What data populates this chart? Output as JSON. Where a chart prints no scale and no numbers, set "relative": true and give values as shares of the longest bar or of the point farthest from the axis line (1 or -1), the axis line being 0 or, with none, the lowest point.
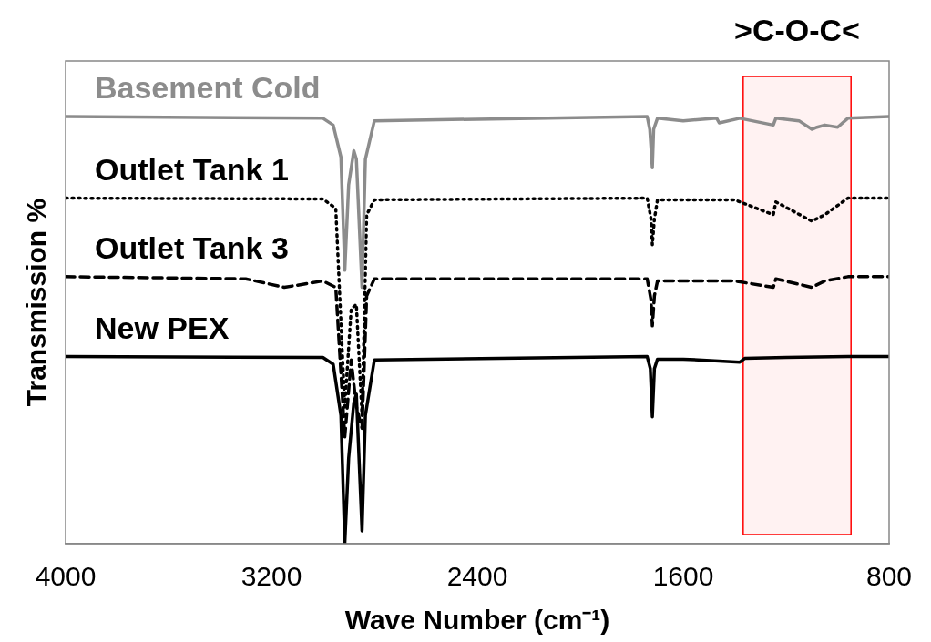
{
  "chart_data": {
    "type": "line",
    "relative": true,
    "xlabel": "Wave Number (cm⁻¹)",
    "ylabel": "Transmission %",
    "xlim": [
      4000,
      800
    ],
    "xticks": [
      4000,
      3200,
      2400,
      1600,
      800
    ],
    "grid": false,
    "legend": false,
    "marker": "none",
    "bands": [
      {
        "axis": "x",
        "from": 1367,
        "to": 948,
        "label": ">C-O-C<",
        "color": "#ff0000"
      }
    ],
    "series": [
      {
        "name": "Basement Cold",
        "color": "#8c8c8c",
        "line_style": "solid",
        "x": [
          4000,
          3000,
          2960,
          2930,
          2915,
          2900,
          2880,
          2870,
          2848,
          2835,
          2800,
          1740,
          1730,
          1720,
          1715,
          1700,
          1600,
          1470,
          1460,
          1380,
          1250,
          1240,
          1150,
          1100,
          1080,
          1050,
          1000,
          960,
          800
        ],
        "values": [
          1.0,
          0.996,
          0.98,
          0.905,
          0.64,
          0.84,
          0.92,
          0.9,
          0.6,
          0.9,
          0.99,
          1.0,
          0.97,
          0.88,
          0.97,
          0.996,
          0.99,
          0.996,
          0.985,
          0.996,
          0.98,
          0.996,
          0.99,
          0.97,
          0.975,
          0.98,
          0.975,
          0.996,
          1.0
        ]
      },
      {
        "name": "Outlet Tank 1",
        "color": "#000000",
        "line_style": "dotted",
        "x": [
          4000,
          3000,
          2950,
          2915,
          2890,
          2870,
          2848,
          2830,
          2800,
          1740,
          1725,
          1720,
          1712,
          1700,
          1400,
          1250,
          1240,
          1100,
          1050,
          960,
          800
        ],
        "values": [
          0.809,
          0.807,
          0.785,
          0.32,
          0.55,
          0.56,
          0.3,
          0.77,
          0.805,
          0.809,
          0.76,
          0.7,
          0.76,
          0.805,
          0.805,
          0.77,
          0.8,
          0.755,
          0.77,
          0.809,
          0.809
        ]
      },
      {
        "name": "Outlet Tank 3",
        "color": "#000000",
        "line_style": "dashed",
        "x": [
          4000,
          3300,
          3150,
          3000,
          2950,
          2915,
          2890,
          2870,
          2848,
          2830,
          2800,
          1740,
          1725,
          1720,
          1712,
          1700,
          1400,
          1250,
          1240,
          1100,
          1050,
          960,
          800
        ],
        "values": [
          0.625,
          0.62,
          0.6,
          0.615,
          0.6,
          0.25,
          0.43,
          0.32,
          0.27,
          0.58,
          0.62,
          0.62,
          0.57,
          0.51,
          0.58,
          0.615,
          0.615,
          0.6,
          0.62,
          0.6,
          0.615,
          0.625,
          0.625
        ]
      },
      {
        "name": "New PEX",
        "color": "#000000",
        "line_style": "solid",
        "x": [
          4000,
          3000,
          2960,
          2930,
          2915,
          2900,
          2880,
          2870,
          2848,
          2835,
          2800,
          1740,
          1728,
          1720,
          1712,
          1700,
          1600,
          1380,
          1360,
          1200,
          960,
          800
        ],
        "values": [
          0.438,
          0.436,
          0.42,
          0.3,
          0.0,
          0.2,
          0.33,
          0.35,
          0.03,
          0.3,
          0.43,
          0.438,
          0.41,
          0.297,
          0.41,
          0.432,
          0.432,
          0.425,
          0.434,
          0.436,
          0.438,
          0.438
        ]
      }
    ]
  }
}
